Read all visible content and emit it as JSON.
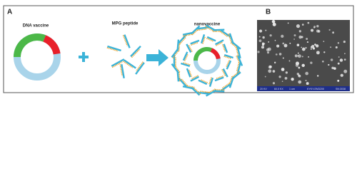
{
  "panel_a": {
    "label": "A",
    "dna_vaccine": "DNA vaccine",
    "peptide": "MPG peptide",
    "nanovaccine": "nanovaccine"
  },
  "panel_b": {
    "label": "B",
    "scale_bar": [
      "20 KV",
      "60.0 KX",
      "1 um",
      "KYKY-EM3200",
      "SN:3038"
    ]
  }
}
